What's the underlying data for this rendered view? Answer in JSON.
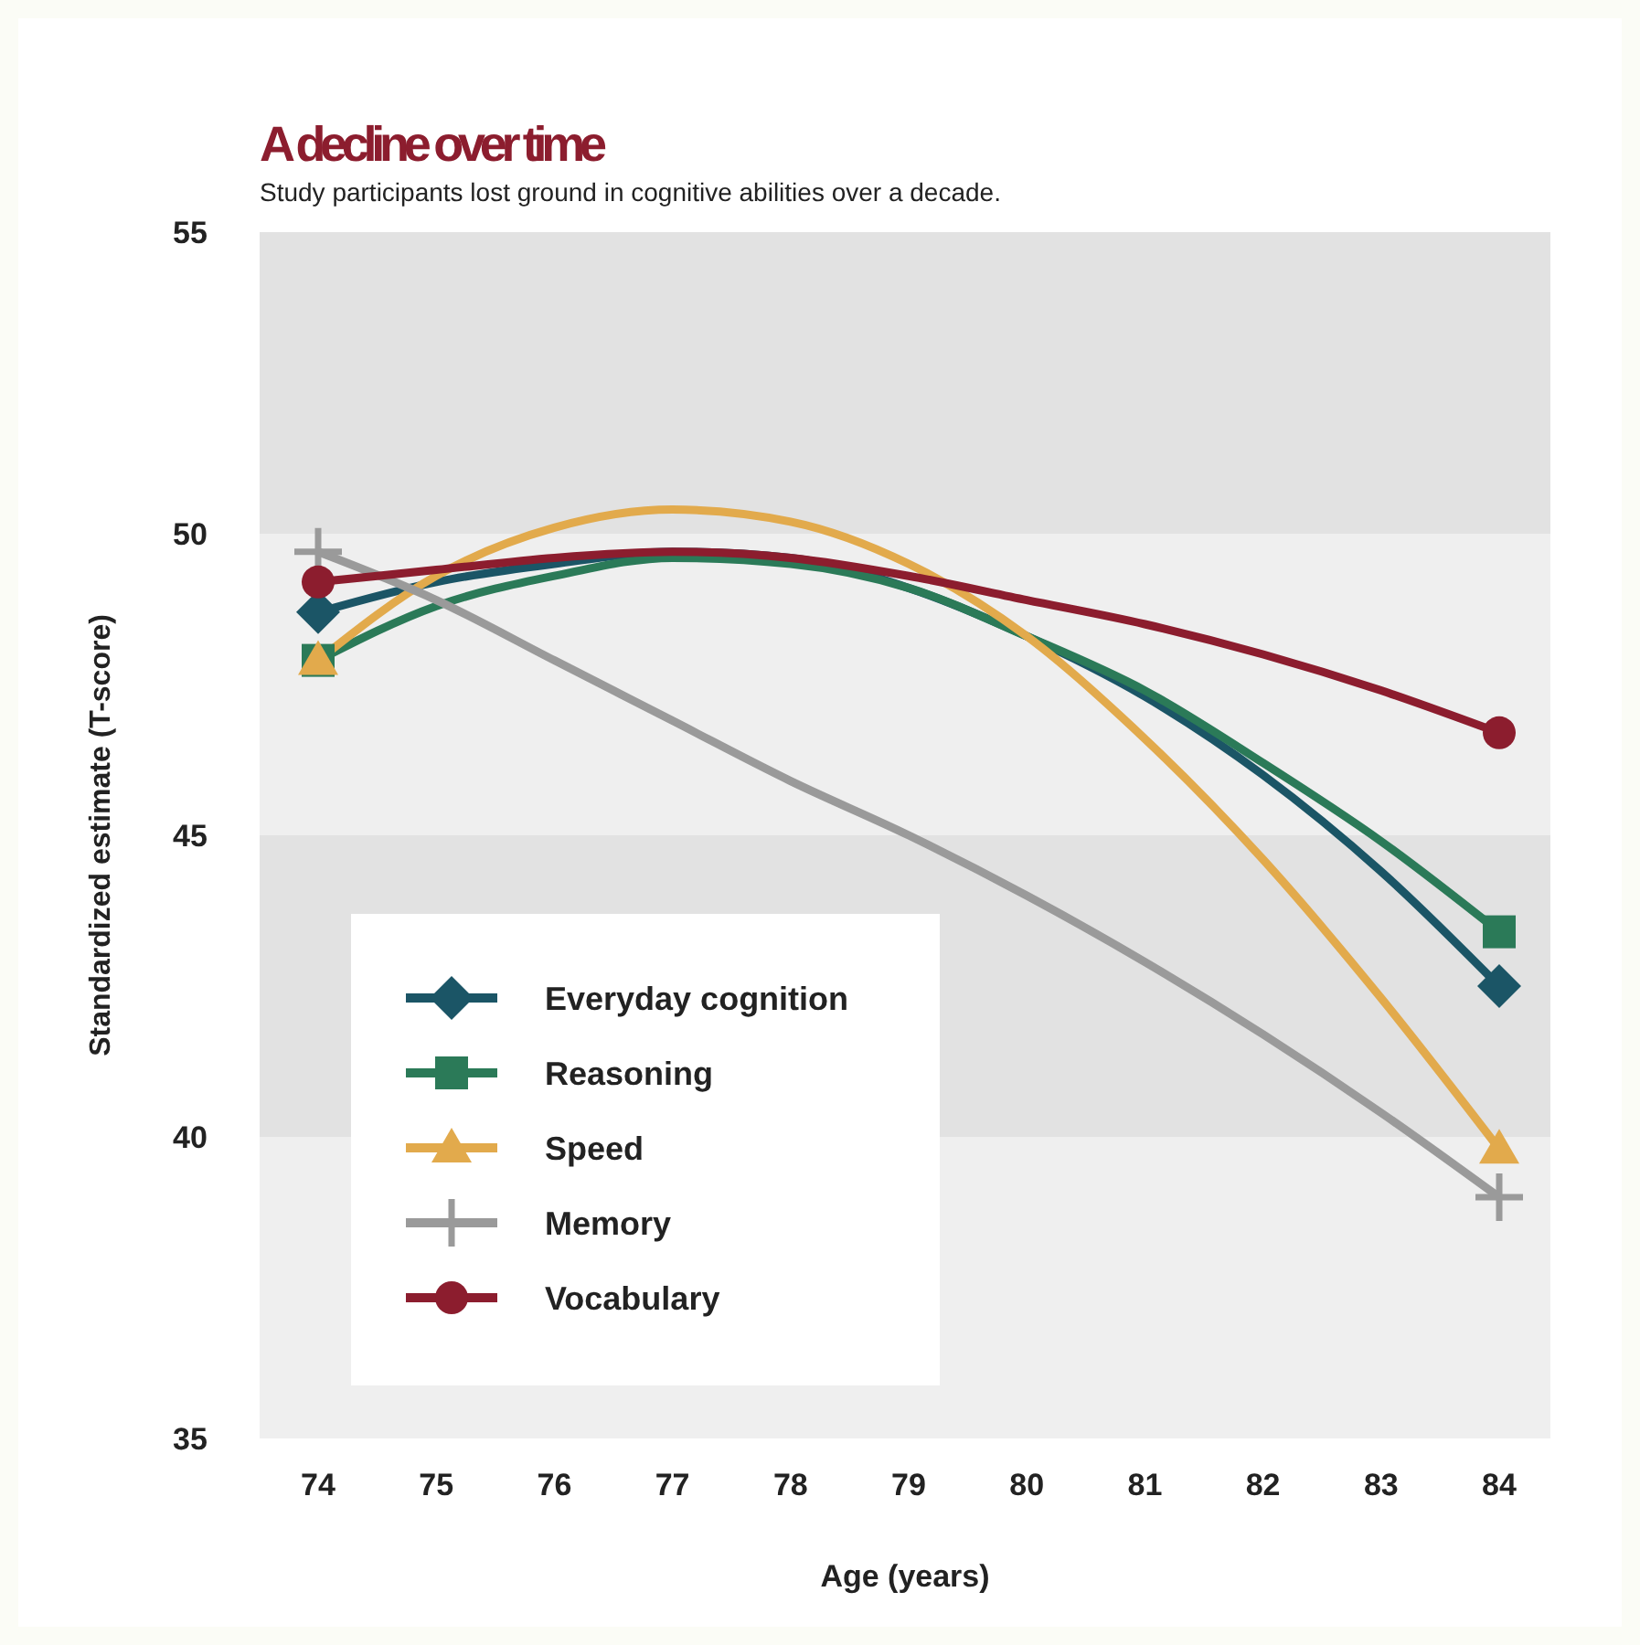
{
  "chart_data": {
    "type": "line",
    "title": "A decline over time",
    "subtitle": "Study participants lost ground in cognitive abilities over a decade.",
    "xlabel": "Age (years)",
    "ylabel": "Standardized estimate (T-score)",
    "x": [
      74,
      75,
      76,
      77,
      78,
      79,
      80,
      81,
      82,
      83,
      84
    ],
    "series": [
      {
        "name": "Everyday cognition",
        "color": "#1b5566",
        "values": [
          48.7,
          49.2,
          49.5,
          49.7,
          49.6,
          49.1,
          48.3,
          47.3,
          46.0,
          44.4,
          42.5
        ]
      },
      {
        "name": "Reasoning",
        "color": "#2b7a58",
        "values": [
          47.9,
          48.8,
          49.3,
          49.6,
          49.5,
          49.1,
          48.3,
          47.4,
          46.2,
          44.9,
          43.4
        ]
      },
      {
        "name": "Speed",
        "color": "#e2aa4c",
        "values": [
          47.9,
          49.3,
          50.1,
          50.4,
          50.2,
          49.5,
          48.3,
          46.6,
          44.6,
          42.3,
          39.8
        ]
      },
      {
        "name": "Memory",
        "color": "#9a9a9a",
        "values": [
          49.7,
          48.9,
          47.9,
          46.9,
          45.9,
          45.0,
          44.0,
          42.9,
          41.7,
          40.4,
          39.0
        ]
      },
      {
        "name": "Vocabulary",
        "color": "#8c1d2e",
        "values": [
          49.2,
          49.4,
          49.6,
          49.7,
          49.6,
          49.3,
          48.9,
          48.5,
          48.0,
          47.4,
          46.7
        ]
      },
      {
        "type": "scatter",
        "color": "#1b5566",
        "marker": "diamond",
        "values": [
          48.7,
          null,
          null,
          null,
          null,
          null,
          null,
          null,
          null,
          null,
          42.5
        ]
      },
      {
        "type": "scatter",
        "color": "#2b7a58",
        "marker": "square",
        "values": [
          47.9,
          null,
          null,
          null,
          null,
          null,
          null,
          null,
          null,
          null,
          43.4
        ]
      },
      {
        "type": "scatter",
        "color": "#e2aa4c",
        "marker": "triangle",
        "values": [
          47.9,
          null,
          null,
          null,
          null,
          null,
          null,
          null,
          null,
          null,
          39.8
        ]
      },
      {
        "type": "scatter",
        "color": "#9a9a9a",
        "marker": "cross",
        "values": [
          49.7,
          null,
          null,
          null,
          null,
          null,
          null,
          null,
          null,
          null,
          39.0
        ]
      },
      {
        "type": "scatter",
        "color": "#8c1d2e",
        "marker": "circle",
        "values": [
          49.2,
          null,
          null,
          null,
          null,
          null,
          null,
          null,
          null,
          null,
          46.7
        ]
      }
    ],
    "xlim": [
      74,
      84
    ],
    "xticks": [
      74,
      75,
      76,
      77,
      78,
      79,
      80,
      81,
      82,
      83,
      84
    ],
    "ylim": [
      35,
      55
    ],
    "yticks": [
      35,
      40,
      45,
      50,
      55
    ],
    "bands": [
      {
        "axis": "y",
        "from": 50,
        "to": 55,
        "color": "#e2e2e2"
      },
      {
        "axis": "y",
        "from": 45,
        "to": 50,
        "color": "#efefef"
      },
      {
        "axis": "y",
        "from": 40,
        "to": 45,
        "color": "#e2e2e2"
      },
      {
        "axis": "y",
        "from": 35,
        "to": 40,
        "color": "#efefef"
      }
    ],
    "legend": "bottom left",
    "grid": false
  }
}
